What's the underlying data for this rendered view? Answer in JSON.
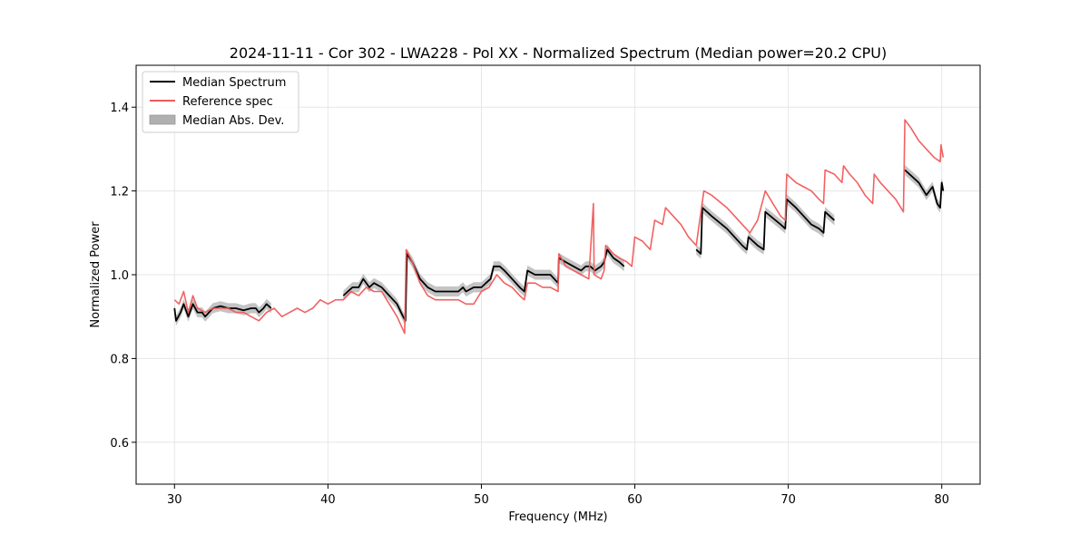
{
  "chart_data": {
    "type": "line",
    "title": "2024-11-11 - Cor 302 - LWA228 - Pol XX - Normalized Spectrum (Median power=20.2 CPU)",
    "xlabel": "Frequency (MHz)",
    "ylabel": "Normalized Power",
    "xlim": [
      27.5,
      82.5
    ],
    "ylim": [
      0.5,
      1.5
    ],
    "xticks": [
      30,
      40,
      50,
      60,
      70,
      80
    ],
    "yticks": [
      0.6,
      0.8,
      1.0,
      1.2,
      1.4
    ],
    "xtick_labels": [
      "30",
      "40",
      "50",
      "60",
      "70",
      "80"
    ],
    "ytick_labels": [
      "0.6",
      "0.8",
      "1.0",
      "1.2",
      "1.4"
    ],
    "grid": true,
    "legend_position": "upper-left",
    "colors": {
      "median": "#000000",
      "reference": "#f05a5a",
      "mad_band": "#b0b0b0"
    },
    "series": [
      {
        "name": "Median Spectrum",
        "segments": [
          [
            [
              30.0,
              0.92
            ],
            [
              30.1,
              0.89
            ],
            [
              30.4,
              0.91
            ],
            [
              30.6,
              0.93
            ],
            [
              30.9,
              0.9
            ],
            [
              31.2,
              0.93
            ],
            [
              31.5,
              0.91
            ],
            [
              31.8,
              0.91
            ],
            [
              32.0,
              0.9
            ],
            [
              32.5,
              0.92
            ],
            [
              33.0,
              0.925
            ],
            [
              33.5,
              0.92
            ],
            [
              34.0,
              0.92
            ],
            [
              34.5,
              0.915
            ],
            [
              35.0,
              0.92
            ],
            [
              35.3,
              0.92
            ],
            [
              35.5,
              0.91
            ],
            [
              35.8,
              0.92
            ],
            [
              36.0,
              0.93
            ],
            [
              36.3,
              0.92
            ]
          ],
          [
            [
              41.0,
              0.95
            ],
            [
              41.3,
              0.96
            ],
            [
              41.6,
              0.97
            ],
            [
              42.0,
              0.97
            ],
            [
              42.3,
              0.99
            ],
            [
              42.7,
              0.97
            ],
            [
              43.0,
              0.98
            ],
            [
              43.5,
              0.97
            ],
            [
              44.0,
              0.95
            ],
            [
              44.5,
              0.93
            ],
            [
              44.9,
              0.9
            ],
            [
              45.05,
              0.89
            ],
            [
              45.15,
              1.05
            ],
            [
              45.5,
              1.03
            ],
            [
              46.0,
              0.99
            ],
            [
              46.5,
              0.97
            ],
            [
              47.0,
              0.96
            ],
            [
              47.5,
              0.96
            ],
            [
              48.0,
              0.96
            ],
            [
              48.5,
              0.96
            ],
            [
              48.8,
              0.97
            ],
            [
              49.0,
              0.96
            ],
            [
              49.5,
              0.97
            ],
            [
              50.0,
              0.97
            ],
            [
              50.3,
              0.98
            ],
            [
              50.6,
              0.99
            ],
            [
              50.8,
              1.02
            ],
            [
              51.2,
              1.02
            ],
            [
              51.5,
              1.01
            ],
            [
              52.0,
              0.99
            ],
            [
              52.5,
              0.97
            ],
            [
              52.8,
              0.96
            ],
            [
              53.0,
              1.01
            ],
            [
              53.5,
              1.0
            ],
            [
              54.0,
              1.0
            ],
            [
              54.5,
              1.0
            ],
            [
              55.0,
              0.98
            ],
            [
              55.05,
              1.04
            ],
            [
              55.5,
              1.03
            ],
            [
              56.0,
              1.02
            ],
            [
              56.5,
              1.01
            ],
            [
              56.8,
              1.02
            ],
            [
              57.1,
              1.02
            ],
            [
              57.4,
              1.01
            ],
            [
              57.8,
              1.02
            ],
            [
              58.0,
              1.03
            ],
            [
              58.2,
              1.06
            ],
            [
              58.6,
              1.04
            ],
            [
              59.0,
              1.03
            ],
            [
              59.3,
              1.02
            ]
          ],
          [
            [
              64.0,
              1.06
            ],
            [
              64.3,
              1.05
            ],
            [
              64.4,
              1.16
            ],
            [
              65.0,
              1.14
            ],
            [
              66.0,
              1.11
            ],
            [
              67.0,
              1.07
            ],
            [
              67.3,
              1.06
            ],
            [
              67.4,
              1.09
            ],
            [
              68.0,
              1.07
            ],
            [
              68.4,
              1.06
            ],
            [
              68.5,
              1.15
            ],
            [
              69.5,
              1.12
            ],
            [
              69.8,
              1.11
            ],
            [
              69.9,
              1.18
            ],
            [
              70.5,
              1.16
            ],
            [
              71.0,
              1.14
            ],
            [
              71.5,
              1.12
            ],
            [
              72.0,
              1.11
            ],
            [
              72.3,
              1.1
            ],
            [
              72.4,
              1.15
            ],
            [
              73.0,
              1.13
            ]
          ],
          [
            [
              77.6,
              1.25
            ],
            [
              78.5,
              1.22
            ],
            [
              79.0,
              1.19
            ],
            [
              79.4,
              1.21
            ],
            [
              79.7,
              1.17
            ],
            [
              79.9,
              1.16
            ],
            [
              80.0,
              1.22
            ],
            [
              80.1,
              1.2
            ]
          ]
        ]
      },
      {
        "name": "Reference spec",
        "segments": [
          [
            [
              30.0,
              0.94
            ],
            [
              30.3,
              0.93
            ],
            [
              30.6,
              0.96
            ],
            [
              30.9,
              0.91
            ],
            [
              31.2,
              0.95
            ],
            [
              31.5,
              0.92
            ],
            [
              32.0,
              0.91
            ],
            [
              32.5,
              0.92
            ],
            [
              33.0,
              0.92
            ],
            [
              33.5,
              0.92
            ],
            [
              34.0,
              0.91
            ],
            [
              34.5,
              0.91
            ],
            [
              35.0,
              0.9
            ],
            [
              35.5,
              0.89
            ],
            [
              36.0,
              0.91
            ],
            [
              36.5,
              0.92
            ],
            [
              37.0,
              0.9
            ],
            [
              37.5,
              0.91
            ],
            [
              38.0,
              0.92
            ],
            [
              38.5,
              0.91
            ],
            [
              39.0,
              0.92
            ],
            [
              39.5,
              0.94
            ],
            [
              40.0,
              0.93
            ],
            [
              40.5,
              0.94
            ],
            [
              41.0,
              0.94
            ],
            [
              41.5,
              0.96
            ],
            [
              42.0,
              0.95
            ],
            [
              42.5,
              0.97
            ],
            [
              43.0,
              0.96
            ],
            [
              43.5,
              0.96
            ],
            [
              44.0,
              0.93
            ],
            [
              44.5,
              0.9
            ],
            [
              45.0,
              0.86
            ],
            [
              45.1,
              1.06
            ],
            [
              45.5,
              1.03
            ],
            [
              46.0,
              0.98
            ],
            [
              46.5,
              0.95
            ],
            [
              47.0,
              0.94
            ],
            [
              47.5,
              0.94
            ],
            [
              48.0,
              0.94
            ],
            [
              48.5,
              0.94
            ],
            [
              49.0,
              0.93
            ],
            [
              49.5,
              0.93
            ],
            [
              50.0,
              0.96
            ],
            [
              50.5,
              0.97
            ],
            [
              51.0,
              1.0
            ],
            [
              51.5,
              0.98
            ],
            [
              52.0,
              0.97
            ],
            [
              52.5,
              0.95
            ],
            [
              52.8,
              0.94
            ],
            [
              53.0,
              0.98
            ],
            [
              53.5,
              0.98
            ],
            [
              54.0,
              0.97
            ],
            [
              54.5,
              0.97
            ],
            [
              55.0,
              0.96
            ],
            [
              55.05,
              1.05
            ],
            [
              55.5,
              1.02
            ],
            [
              56.0,
              1.01
            ],
            [
              56.5,
              1.0
            ],
            [
              57.0,
              0.99
            ],
            [
              57.3,
              1.17
            ],
            [
              57.35,
              1.0
            ],
            [
              57.8,
              0.99
            ],
            [
              58.0,
              1.01
            ],
            [
              58.1,
              1.07
            ],
            [
              58.6,
              1.05
            ],
            [
              59.0,
              1.04
            ],
            [
              59.5,
              1.03
            ],
            [
              59.8,
              1.02
            ],
            [
              60.0,
              1.09
            ],
            [
              60.5,
              1.08
            ],
            [
              61.0,
              1.06
            ],
            [
              61.3,
              1.13
            ],
            [
              61.8,
              1.12
            ],
            [
              62.0,
              1.16
            ],
            [
              62.5,
              1.14
            ],
            [
              63.0,
              1.12
            ],
            [
              63.5,
              1.09
            ],
            [
              64.0,
              1.07
            ],
            [
              64.5,
              1.2
            ],
            [
              65.0,
              1.19
            ],
            [
              66.0,
              1.16
            ],
            [
              67.0,
              1.12
            ],
            [
              67.5,
              1.1
            ],
            [
              68.0,
              1.13
            ],
            [
              68.5,
              1.2
            ],
            [
              69.0,
              1.17
            ],
            [
              69.5,
              1.14
            ],
            [
              69.8,
              1.13
            ],
            [
              69.9,
              1.24
            ],
            [
              70.5,
              1.22
            ],
            [
              71.0,
              1.21
            ],
            [
              71.5,
              1.2
            ],
            [
              72.0,
              1.18
            ],
            [
              72.3,
              1.17
            ],
            [
              72.4,
              1.25
            ],
            [
              73.0,
              1.24
            ],
            [
              73.5,
              1.22
            ],
            [
              73.6,
              1.26
            ],
            [
              74.0,
              1.24
            ],
            [
              74.5,
              1.22
            ],
            [
              75.0,
              1.19
            ],
            [
              75.5,
              1.17
            ],
            [
              75.6,
              1.24
            ],
            [
              76.0,
              1.22
            ],
            [
              76.5,
              1.2
            ],
            [
              77.0,
              1.18
            ],
            [
              77.5,
              1.15
            ],
            [
              77.6,
              1.37
            ],
            [
              78.0,
              1.35
            ],
            [
              78.5,
              1.32
            ],
            [
              79.0,
              1.3
            ],
            [
              79.5,
              1.28
            ],
            [
              79.9,
              1.27
            ],
            [
              79.95,
              1.31
            ],
            [
              80.0,
              1.3
            ],
            [
              80.1,
              1.28
            ]
          ]
        ]
      }
    ],
    "band": {
      "name": "Median Abs. Dev.",
      "halfwidth": 0.012
    }
  }
}
